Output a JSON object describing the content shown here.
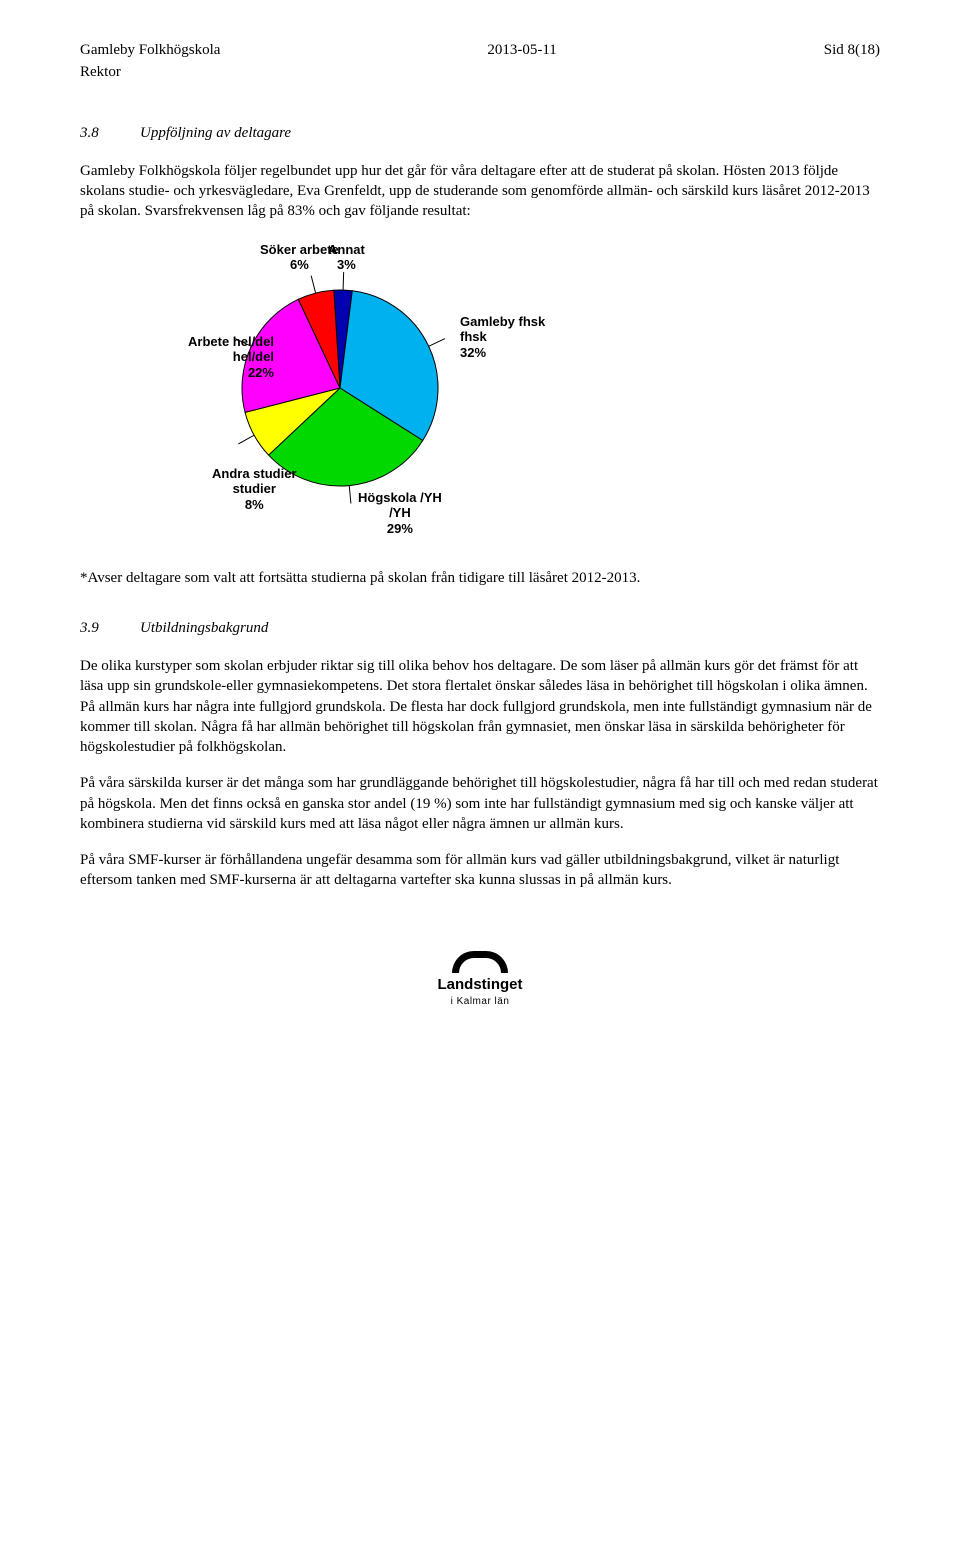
{
  "header": {
    "left": "Gamleby Folkhögskola",
    "center": "2013-05-11",
    "right": "Sid 8(18)",
    "sub": "Rektor"
  },
  "section1": {
    "num": "3.8",
    "title": "Uppföljning av deltagare",
    "p1": "Gamleby Folkhögskola följer regelbundet upp hur det går för våra deltagare efter att de studerat på skolan. Hösten 2013 följde skolans studie- och yrkesvägledare, Eva Grenfeldt, upp de studerande som genomförde allmän- och särskild kurs läsåret 2012-2013 på skolan. Svarsfrekvensen låg på 83% och gav följande resultat:"
  },
  "chart": {
    "type": "pie",
    "background_color": "#ffffff",
    "slice_border_color": "#000000",
    "slice_border_width": 1,
    "label_fontsize": 13,
    "label_fontweight": "bold",
    "slices": [
      {
        "label": "Gamleby fhsk",
        "percent": 32,
        "percent_label": "32%",
        "color": "#00b1ef"
      },
      {
        "label": "Högskola /YH",
        "percent": 29,
        "percent_label": "29%",
        "color": "#00d800"
      },
      {
        "label": "Andra studier",
        "percent": 8,
        "percent_label": "8%",
        "color": "#ffff00"
      },
      {
        "label": "Arbete hel/del",
        "percent": 22,
        "percent_label": "22%",
        "color": "#ff00ff"
      },
      {
        "label": "Söker arbete",
        "percent": 6,
        "percent_label": "6%",
        "color": "#ff0000"
      },
      {
        "label": "Annat",
        "percent": 3,
        "percent_label": "3%",
        "color": "#0000b0"
      }
    ],
    "footnote": "*Avser deltagare som valt att fortsätta studierna på skolan från tidigare till läsåret 2012-2013."
  },
  "section2": {
    "num": "3.9",
    "title": "Utbildningsbakgrund",
    "p1": "De olika kurstyper som skolan erbjuder riktar sig till olika behov hos deltagare. De som läser på allmän kurs gör det främst för att läsa upp sin grundskole-eller gymnasiekompetens. Det stora flertalet önskar således läsa in behörighet till högskolan i olika ämnen. På allmän kurs har några inte fullgjord grundskola. De flesta har dock fullgjord grundskola, men inte fullständigt gymnasium när de kommer till skolan. Några få har allmän behörighet till högskolan från gymnasiet, men önskar läsa in särskilda behörigheter för högskolestudier på folkhögskolan.",
    "p2": "På våra särskilda kurser är det många som har grundläggande behörighet till högskolestudier, några få har till och med redan studerat på högskola. Men det finns också en ganska stor andel (19 %) som inte har fullständigt gymnasium med sig och kanske väljer att kombinera studierna vid särskild kurs med att läsa något eller några ämnen ur allmän kurs.",
    "p3": "På våra SMF-kurser är förhållandena ungefär desamma som för allmän kurs vad gäller utbildningsbakgrund, vilket är naturligt eftersom tanken med SMF-kurserna är att deltagarna vartefter ska kunna slussas in på allmän kurs."
  },
  "footer": {
    "line1": "Landstinget",
    "line2": "i Kalmar län"
  }
}
